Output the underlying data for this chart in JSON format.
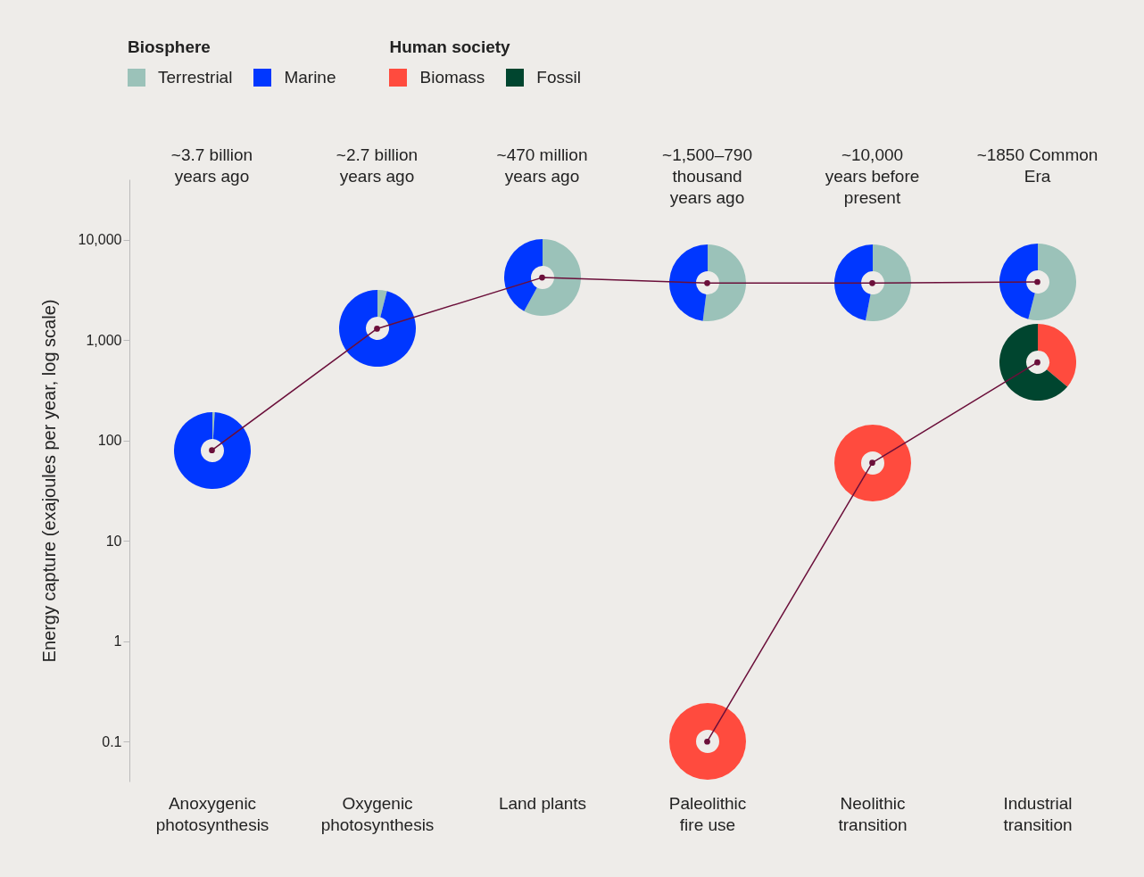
{
  "chart_data": [
    {
      "type": "line",
      "categories": [
        "Anoxygenic photosynthesis",
        "Oxygenic photosynthesis",
        "Land plants",
        "Paleolithic fire use",
        "Neolithic transition",
        "Industrial transition"
      ],
      "series": [
        {
          "color": "#6b0f3a",
          "values": [
            80,
            1300,
            4200,
            3700,
            3700,
            3800
          ]
        },
        {
          "color": "#6b0f3a",
          "values": [
            null,
            null,
            null,
            0.1,
            60,
            600
          ]
        }
      ],
      "ylabel": "Energy capture (exajoules per year, log scale)",
      "log": true,
      "ylim": [
        0.04,
        40000
      ],
      "yticks": [
        0.1,
        1,
        10,
        100,
        {
          "value": 1000,
          "label": "1,000"
        },
        {
          "value": 10000,
          "label": "10,000"
        }
      ],
      "annotations": [
        "~3.7 billion years ago",
        "~2.7 billion years ago",
        "~470 million years ago",
        "~1,500–790 thousand years ago",
        "~10,000 years before present",
        "~1850 Common Era"
      ],
      "marker": "circle"
    },
    {
      "type": "donut",
      "categories": [
        "Terrestrial",
        "Marine"
      ],
      "values": [
        1,
        99
      ],
      "colors": [
        "#9bc2b9",
        "#0037ff"
      ],
      "legend": "top",
      "legend_title": "Biosphere"
    },
    {
      "type": "donut",
      "categories": [
        null,
        null
      ],
      "values": [
        4,
        96
      ],
      "colors": [
        "#9bc2b9",
        "#0037ff"
      ]
    },
    {
      "type": "donut",
      "categories": [
        null,
        null
      ],
      "values": [
        58,
        42
      ],
      "colors": [
        "#9bc2b9",
        "#0037ff"
      ]
    },
    {
      "type": "donut",
      "categories": [
        null,
        null
      ],
      "values": [
        52,
        48
      ],
      "colors": [
        "#9bc2b9",
        "#0037ff"
      ]
    },
    {
      "type": "donut",
      "categories": [
        null,
        null
      ],
      "values": [
        53,
        47
      ],
      "colors": [
        "#9bc2b9",
        "#0037ff"
      ]
    },
    {
      "type": "donut",
      "categories": [
        null,
        null
      ],
      "values": [
        54,
        46
      ],
      "colors": [
        "#9bc2b9",
        "#0037ff"
      ]
    },
    {
      "type": "donut",
      "categories": [
        null
      ],
      "values": [
        100
      ],
      "colors": [
        "#ff4b3e"
      ]
    },
    {
      "type": "donut",
      "categories": [
        null
      ],
      "values": [
        100
      ],
      "colors": [
        "#ff4b3e"
      ]
    },
    {
      "type": "donut",
      "categories": [
        "Biomass",
        "Fossil"
      ],
      "values": [
        36,
        64
      ],
      "colors": [
        "#ff4b3e",
        "#00452f"
      ],
      "legend": "top left",
      "legend_title": "Human society"
    }
  ]
}
